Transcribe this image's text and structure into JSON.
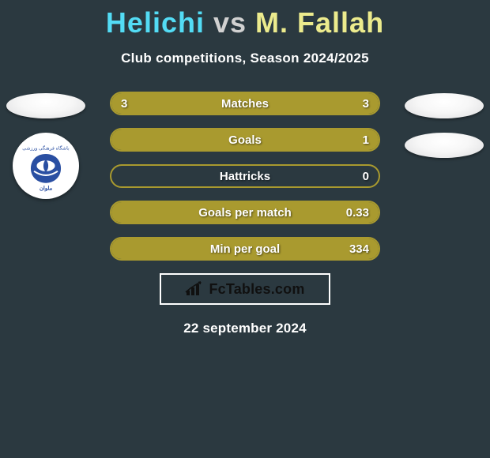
{
  "background_color": "#2b3940",
  "title": {
    "player1": "Helichi",
    "vs": "vs",
    "player2": "M. Fallah",
    "player1_color": "#53dcf5",
    "vs_color": "#d1d1d1",
    "player2_color": "#eceb8d",
    "fontsize": 36
  },
  "subtitle": "Club competitions, Season 2024/2025",
  "avatars": {
    "left": [
      {
        "type": "oval-placeholder"
      },
      {
        "type": "club-logo",
        "club": "Malavan",
        "logo_primary": "#2a4fa2",
        "logo_bg": "#ffffff"
      }
    ],
    "right": [
      {
        "type": "oval-placeholder"
      },
      {
        "type": "oval-placeholder"
      }
    ]
  },
  "stats": {
    "border_color": "#a99a2f",
    "fill_color": "#a99a2f",
    "rows": [
      {
        "label": "Matches",
        "left": "3",
        "right": "3",
        "left_pct": 50,
        "right_pct": 50
      },
      {
        "label": "Goals",
        "left": "",
        "right": "1",
        "left_pct": 0,
        "right_pct": 100
      },
      {
        "label": "Hattricks",
        "left": "",
        "right": "0",
        "left_pct": 0,
        "right_pct": 0
      },
      {
        "label": "Goals per match",
        "left": "",
        "right": "0.33",
        "left_pct": 0,
        "right_pct": 100
      },
      {
        "label": "Min per goal",
        "left": "",
        "right": "334",
        "left_pct": 0,
        "right_pct": 100
      }
    ]
  },
  "brand": {
    "icon": "bar-chart-icon",
    "text": "FcTables.com",
    "border_color": "#ffffff",
    "text_color": "#101010"
  },
  "date": "22 september 2024"
}
